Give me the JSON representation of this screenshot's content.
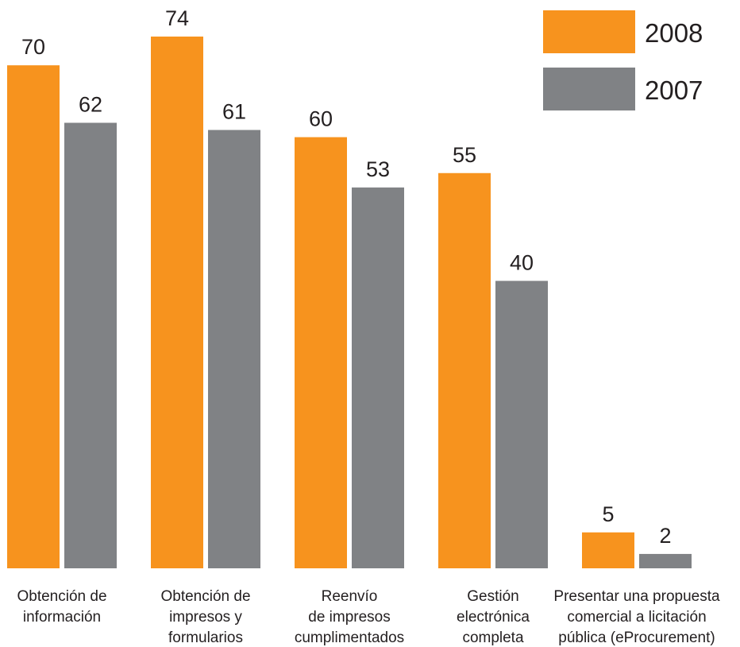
{
  "chart_data": {
    "type": "bar",
    "title": "",
    "xlabel": "",
    "ylabel": "",
    "categories": [
      [
        "Obtención de",
        "información"
      ],
      [
        "Obtención de",
        "impresos y",
        "formularios"
      ],
      [
        "Reenvío",
        "de impresos",
        "cumplimentados"
      ],
      [
        "Gestión",
        "electrónica",
        "completa"
      ],
      [
        "Presentar una propuesta",
        "comercial a licitación",
        "pública (eProcurement)"
      ]
    ],
    "series": [
      {
        "name": "2008",
        "color": "#f7931e",
        "values": [
          70,
          74,
          60,
          55,
          5
        ]
      },
      {
        "name": "2007",
        "color": "#808285",
        "values": [
          62,
          61,
          53,
          40,
          2
        ]
      }
    ],
    "ylim": [
      0,
      74
    ],
    "grid": false,
    "legend_position": "top-right"
  }
}
